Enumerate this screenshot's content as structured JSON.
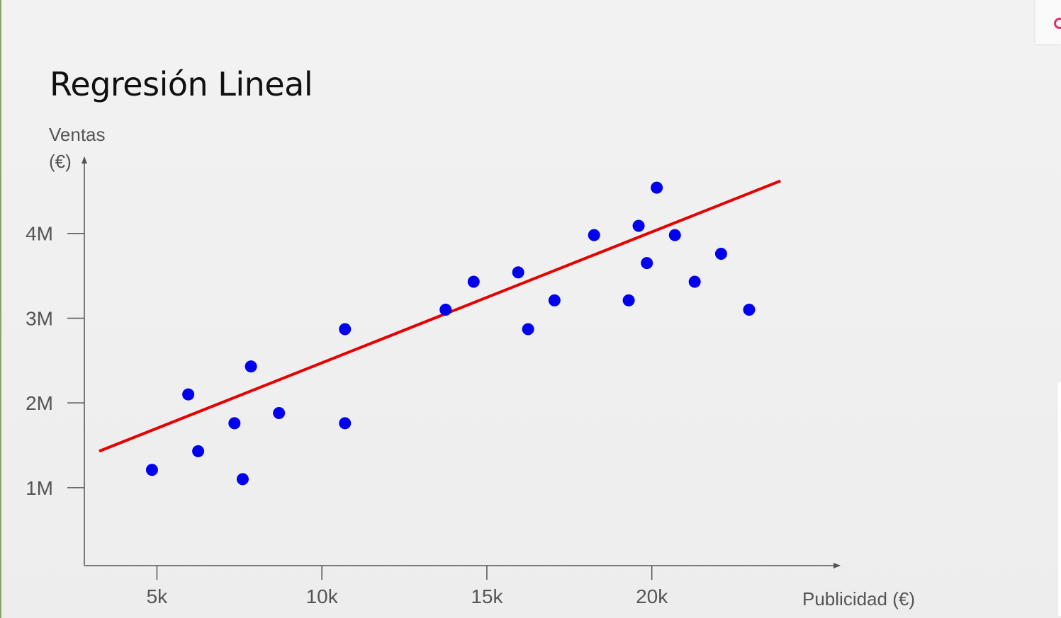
{
  "slide": {
    "title": "Regresión Lineal"
  },
  "chart_data": {
    "type": "scatter",
    "title": "Regresión Lineal",
    "ylabel_line1": "Ventas",
    "ylabel_line2": "(€)",
    "xlabel": "Publicidad (€)",
    "x_ticks": [
      5000,
      10000,
      15000,
      20000
    ],
    "x_tick_labels": [
      "5k",
      "10k",
      "15k",
      "20k"
    ],
    "y_ticks": [
      1000000,
      2000000,
      3000000,
      4000000
    ],
    "y_tick_labels": [
      "1M",
      "2M",
      "3M",
      "4M"
    ],
    "xlim": [
      2800,
      25700
    ],
    "ylim": [
      80000,
      4900000
    ],
    "grid": false,
    "legend": "none",
    "points_color": "#0000ee",
    "line_color": "#e60000",
    "points": [
      {
        "x": 4850,
        "y": 1210000
      },
      {
        "x": 5950,
        "y": 2100000
      },
      {
        "x": 6250,
        "y": 1430000
      },
      {
        "x": 7350,
        "y": 1760000
      },
      {
        "x": 7600,
        "y": 1100000
      },
      {
        "x": 7850,
        "y": 2430000
      },
      {
        "x": 8700,
        "y": 1880000
      },
      {
        "x": 10700,
        "y": 2870000
      },
      {
        "x": 10700,
        "y": 1760000
      },
      {
        "x": 13750,
        "y": 3100000
      },
      {
        "x": 14600,
        "y": 3430000
      },
      {
        "x": 15950,
        "y": 3540000
      },
      {
        "x": 16250,
        "y": 2870000
      },
      {
        "x": 17050,
        "y": 3210000
      },
      {
        "x": 18250,
        "y": 3980000
      },
      {
        "x": 19300,
        "y": 3210000
      },
      {
        "x": 19600,
        "y": 4090000
      },
      {
        "x": 19850,
        "y": 3650000
      },
      {
        "x": 20150,
        "y": 4540000
      },
      {
        "x": 20700,
        "y": 3980000
      },
      {
        "x": 21300,
        "y": 3430000
      },
      {
        "x": 22100,
        "y": 3760000
      },
      {
        "x": 22950,
        "y": 3100000
      }
    ],
    "regression_line": {
      "x": [
        3250,
        23900
      ],
      "y": [
        1430000,
        4620000
      ]
    }
  }
}
